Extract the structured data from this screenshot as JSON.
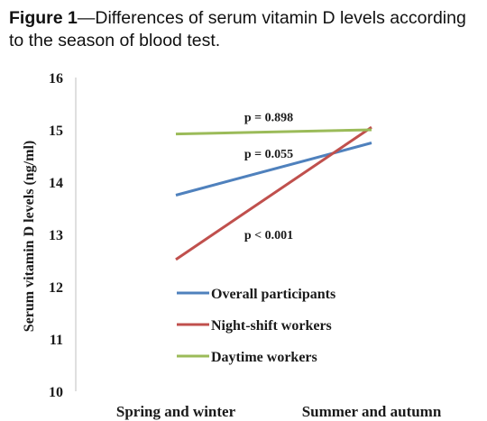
{
  "caption": {
    "label": "Figure 1",
    "text": "—Differences of serum vitamin D levels according to the season of blood test."
  },
  "chart_data": {
    "type": "line",
    "title": "",
    "xlabel": "",
    "ylabel": "Serum vitamin D levels (ng/ml)",
    "categories": [
      "Spring and winter",
      "Summer and autumn"
    ],
    "ylim": [
      10,
      16
    ],
    "yticks": [
      "10",
      "11",
      "12",
      "13",
      "14",
      "15",
      "16"
    ],
    "grid": false,
    "legend_position": "bottom-center",
    "series": [
      {
        "name": "Overall participants",
        "values": [
          13.75,
          14.75
        ],
        "color": "#4f81bd"
      },
      {
        "name": "Night-shift workers",
        "values": [
          12.52,
          15.05
        ],
        "color": "#c0504d"
      },
      {
        "name": "Daytime workers",
        "values": [
          14.92,
          15.0
        ],
        "color": "#9bbb59"
      }
    ],
    "annotations": [
      {
        "text": "p = 0.898",
        "x": "mid",
        "y": 15.25
      },
      {
        "text": "p = 0.055",
        "x": "mid",
        "y": 14.55
      },
      {
        "text": "p < 0.001",
        "x": "mid",
        "y": 13.0
      }
    ]
  }
}
